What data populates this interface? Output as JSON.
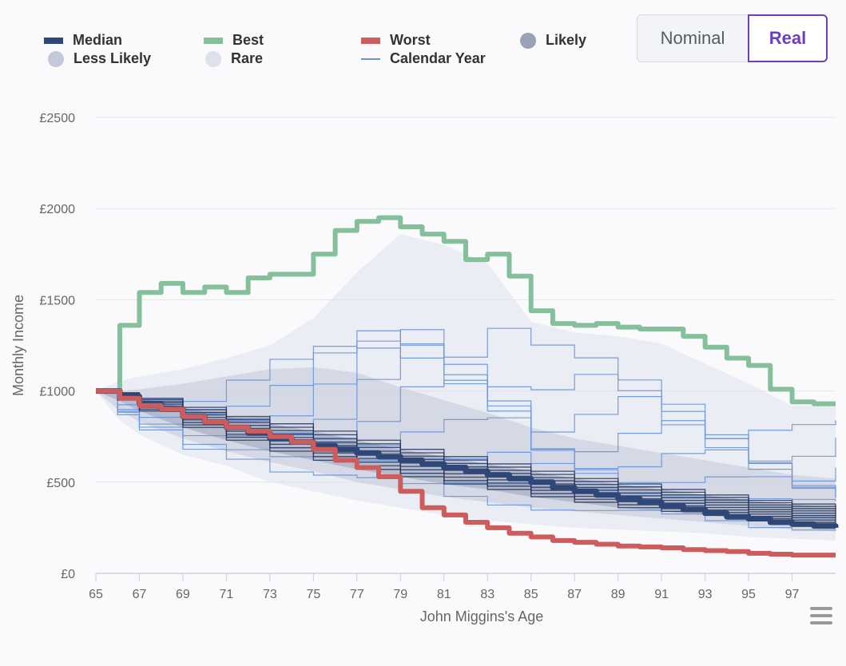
{
  "toggle": {
    "nominal_label": "Nominal",
    "real_label": "Real",
    "selected": "Real"
  },
  "legend": [
    {
      "key": "median",
      "label": "Median",
      "symbol": "line",
      "color": "#2f4777"
    },
    {
      "key": "best",
      "label": "Best",
      "symbol": "line",
      "color": "#86c09b"
    },
    {
      "key": "worst",
      "label": "Worst",
      "symbol": "line",
      "color": "#cd5c5c"
    },
    {
      "key": "likely",
      "label": "Likely",
      "symbol": "dot",
      "color": "#9aa2b8"
    },
    {
      "key": "less_likely",
      "label": "Less Likely",
      "symbol": "dot",
      "color": "#c3c9d9"
    },
    {
      "key": "rare",
      "label": "Rare",
      "symbol": "dot",
      "color": "#dde1eb"
    },
    {
      "key": "calendar_year",
      "label": "Calendar Year",
      "symbol": "thin-line",
      "color": "#6a93d6"
    }
  ],
  "menu_icon": "hamburger-menu-icon",
  "chart_data": {
    "type": "line",
    "title": "",
    "xlabel": "John Miggins's Age",
    "ylabel": "Monthly Income",
    "xlim": [
      65,
      99
    ],
    "ylim": [
      0,
      2500
    ],
    "x_ticks": [
      "65",
      "67",
      "69",
      "71",
      "73",
      "75",
      "77",
      "79",
      "81",
      "83",
      "85",
      "87",
      "89",
      "91",
      "93",
      "95",
      "97"
    ],
    "y_ticks": [
      "£0",
      "£500",
      "£1000",
      "£1500",
      "£2000",
      "£2500"
    ],
    "grid": "horizontal",
    "legend_position": "top",
    "series": [
      {
        "name": "Best",
        "color": "#86c09b",
        "x": [
          65,
          66,
          66.1,
          67,
          68,
          69,
          70,
          71,
          72,
          73,
          74,
          75,
          76,
          77,
          78,
          79,
          80,
          81,
          82,
          83,
          84,
          85,
          86,
          87,
          88,
          89,
          90,
          91,
          92,
          93,
          94,
          95,
          96,
          97,
          98,
          99
        ],
        "y": [
          1000,
          1000,
          1360,
          1540,
          1590,
          1540,
          1570,
          1540,
          1620,
          1640,
          1640,
          1750,
          1880,
          1930,
          1950,
          1900,
          1860,
          1820,
          1720,
          1750,
          1630,
          1440,
          1370,
          1360,
          1370,
          1350,
          1340,
          1340,
          1300,
          1240,
          1180,
          1140,
          1010,
          940,
          930,
          930
        ]
      },
      {
        "name": "Median",
        "color": "#2f4777",
        "x": [
          65,
          66,
          66.1,
          67,
          68,
          69,
          70,
          71,
          72,
          73,
          74,
          75,
          76,
          77,
          78,
          79,
          80,
          81,
          82,
          83,
          84,
          85,
          86,
          87,
          88,
          89,
          90,
          91,
          92,
          93,
          94,
          95,
          96,
          97,
          98,
          99
        ],
        "y": [
          1000,
          1000,
          970,
          930,
          900,
          860,
          830,
          800,
          770,
          740,
          720,
          700,
          680,
          660,
          640,
          620,
          600,
          580,
          560,
          540,
          520,
          500,
          470,
          450,
          430,
          410,
          390,
          370,
          350,
          330,
          310,
          300,
          280,
          270,
          260,
          250
        ]
      },
      {
        "name": "Worst",
        "color": "#cd5c5c",
        "x": [
          65,
          66,
          66.1,
          67,
          68,
          69,
          70,
          71,
          72,
          73,
          74,
          75,
          76,
          77,
          78,
          79,
          80,
          81,
          82,
          83,
          84,
          85,
          86,
          87,
          88,
          89,
          90,
          91,
          92,
          93,
          94,
          95,
          96,
          97,
          98,
          99
        ],
        "y": [
          1000,
          1000,
          960,
          920,
          900,
          860,
          830,
          800,
          780,
          750,
          720,
          680,
          620,
          580,
          530,
          450,
          360,
          320,
          280,
          250,
          220,
          200,
          180,
          170,
          160,
          150,
          145,
          140,
          130,
          125,
          120,
          110,
          105,
          100,
          100,
          100
        ]
      }
    ],
    "bands": {
      "rare": {
        "color": "#dde1eb",
        "x": [
          65,
          66,
          67,
          69,
          71,
          73,
          75,
          77,
          79,
          81,
          83,
          85,
          87,
          89,
          91,
          93,
          95,
          97,
          99
        ],
        "upper": [
          1000,
          1050,
          1080,
          1120,
          1180,
          1250,
          1400,
          1650,
          1860,
          1800,
          1700,
          1380,
          1320,
          1300,
          1260,
          1150,
          1040,
          920,
          920
        ],
        "lower": [
          1000,
          850,
          760,
          650,
          590,
          500,
          450,
          400,
          360,
          320,
          290,
          270,
          250,
          240,
          230,
          220,
          200,
          190,
          180
        ]
      },
      "less_likely": {
        "color": "#c3c9d9",
        "x": [
          65,
          66,
          67,
          69,
          71,
          73,
          75,
          77,
          79,
          81,
          83,
          85,
          87,
          89,
          91,
          93,
          95,
          97,
          99
        ],
        "upper": [
          1000,
          1000,
          1010,
          1040,
          1080,
          1120,
          1130,
          1100,
          1020,
          950,
          880,
          800,
          740,
          700,
          660,
          620,
          580,
          540,
          520
        ],
        "lower": [
          1000,
          900,
          830,
          740,
          670,
          610,
          560,
          500,
          460,
          420,
          390,
          360,
          340,
          320,
          300,
          280,
          260,
          240,
          230
        ]
      },
      "likely": {
        "color": "#9aa2b8",
        "x": [
          65,
          66,
          67,
          69,
          71,
          73,
          75,
          77,
          79,
          81,
          83,
          85,
          87,
          89,
          91,
          93,
          95,
          97,
          99
        ],
        "upper": [
          1000,
          990,
          960,
          910,
          860,
          820,
          780,
          730,
          680,
          640,
          600,
          560,
          520,
          490,
          460,
          430,
          400,
          380,
          360
        ],
        "lower": [
          1000,
          950,
          890,
          800,
          730,
          670,
          620,
          570,
          530,
          490,
          460,
          420,
          390,
          360,
          340,
          320,
          300,
          280,
          270
        ]
      }
    }
  }
}
